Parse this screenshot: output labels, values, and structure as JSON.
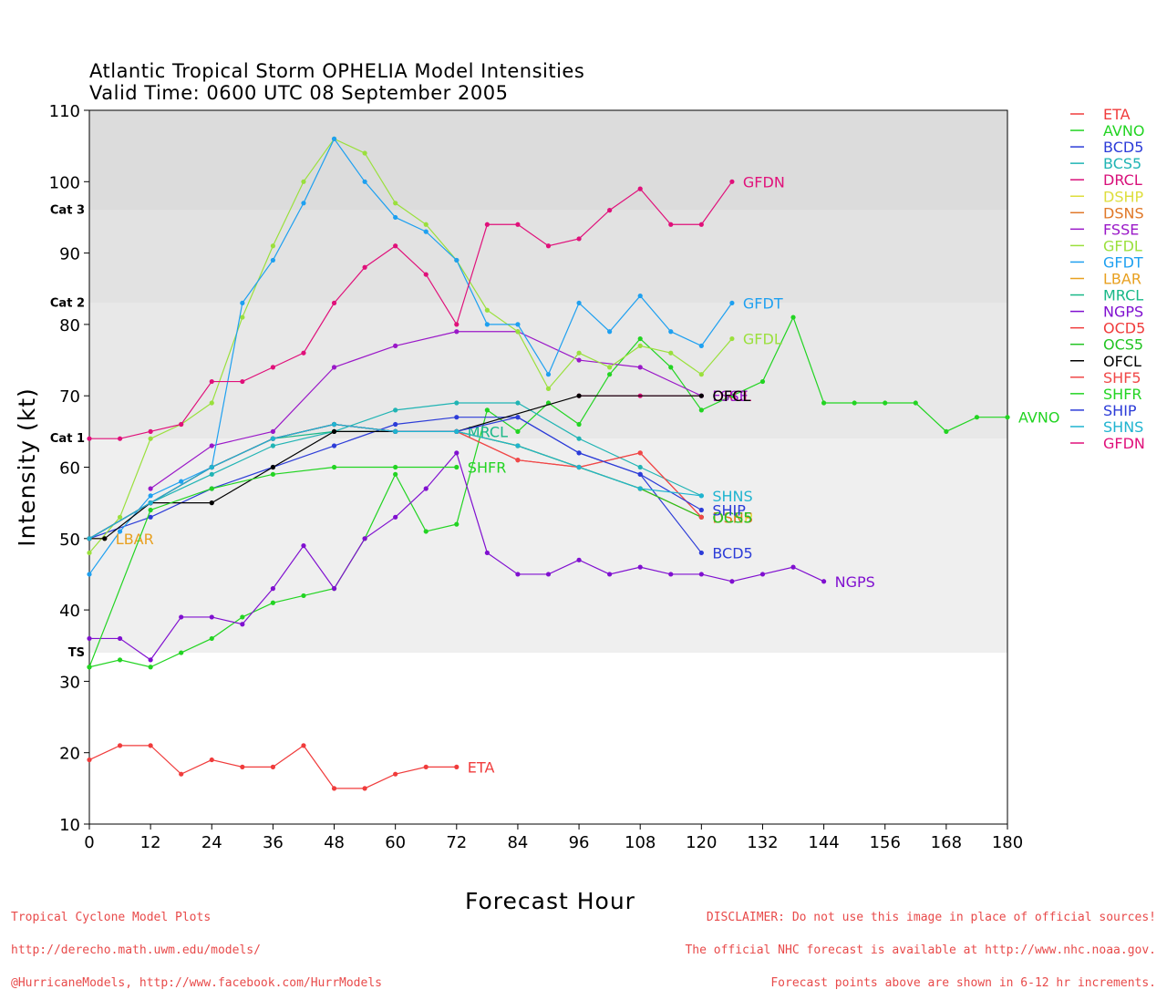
{
  "title": {
    "line1": "Atlantic Tropical Storm OPHELIA Model Intensities",
    "line2": "Valid Time: 0600 UTC 08 September 2005"
  },
  "footer": {
    "left": [
      "Tropical Cyclone Model Plots",
      "http://derecho.math.uwm.edu/models/",
      "@HurricaneModels, http://www.facebook.com/HurrModels"
    ],
    "right": [
      "DISCLAIMER: Do not use this image in place of official sources!",
      "The official NHC forecast is available at http://www.nhc.noaa.gov.",
      "Forecast points above are shown in 6-12 hr increments."
    ],
    "color": "#e84a4a"
  },
  "chart_data": {
    "type": "line",
    "xlabel": "Forecast Hour",
    "ylabel": "Intensity (kt)",
    "xlim": [
      0,
      180
    ],
    "ylim": [
      10,
      110
    ],
    "xticks": [
      0,
      12,
      24,
      36,
      48,
      60,
      72,
      84,
      96,
      108,
      120,
      132,
      144,
      156,
      168,
      180
    ],
    "yticks": [
      10,
      20,
      30,
      40,
      50,
      60,
      70,
      80,
      90,
      100,
      110
    ],
    "legend_position": "right",
    "bands": [
      {
        "label": "TS",
        "from": 34,
        "to": 64,
        "color": "#efefef"
      },
      {
        "label": "Cat 1",
        "from": 64,
        "to": 83,
        "color": "#e8e8e8"
      },
      {
        "label": "Cat 2",
        "from": 83,
        "to": 96,
        "color": "#e2e2e2"
      },
      {
        "label": "Cat 3",
        "from": 96,
        "to": 110,
        "color": "#dcdcdc"
      }
    ],
    "series": [
      {
        "name": "ETA",
        "color": "#f03c3c",
        "label": "ETA",
        "x": [
          0,
          6,
          12,
          18,
          24,
          30,
          36,
          42,
          48,
          54,
          60,
          66,
          72
        ],
        "y": [
          19,
          21,
          21,
          17,
          19,
          18,
          18,
          21,
          15,
          15,
          17,
          18,
          18
        ]
      },
      {
        "name": "AVNO",
        "color": "#22d422",
        "label": "AVNO",
        "x": [
          0,
          6,
          12,
          18,
          24,
          30,
          36,
          42,
          48,
          54,
          60,
          66,
          72,
          78,
          84,
          90,
          96,
          102,
          108,
          114,
          120,
          126,
          132,
          138,
          144,
          150,
          156,
          162,
          168,
          174,
          180
        ],
        "y": [
          32,
          33,
          32,
          34,
          36,
          39,
          41,
          42,
          43,
          50,
          59,
          51,
          52,
          68,
          65,
          69,
          66,
          73,
          78,
          74,
          68,
          70,
          72,
          81,
          69,
          69,
          69,
          69,
          65,
          67,
          67
        ]
      },
      {
        "name": "BCD5",
        "color": "#2c3cd8",
        "label": "BCD5",
        "x": [
          0,
          12,
          24,
          36,
          48,
          60,
          72,
          84,
          96,
          108,
          120
        ],
        "y": [
          50,
          53,
          57,
          60,
          63,
          66,
          67,
          67,
          62,
          59,
          48
        ]
      },
      {
        "name": "BCS5",
        "color": "#20b4b4",
        "label": "",
        "x": [
          0,
          12,
          24,
          36,
          48,
          60,
          72,
          84,
          96,
          108,
          120
        ],
        "y": [
          50,
          55,
          59,
          63,
          65,
          68,
          69,
          69,
          64,
          60,
          56
        ]
      },
      {
        "name": "DRCL",
        "color": "#d8107a",
        "label": "DRCL",
        "x": [
          96,
          108,
          120
        ],
        "y": [
          70,
          70,
          70
        ]
      },
      {
        "name": "DSHP",
        "color": "#dede3c",
        "label": "DSHP",
        "x": [
          0,
          12,
          24,
          36,
          48,
          60,
          72,
          84,
          96,
          108,
          120
        ],
        "y": [
          50,
          55,
          60,
          64,
          66,
          65,
          65,
          63,
          60,
          57,
          53
        ]
      },
      {
        "name": "DSNS",
        "color": "#e07828",
        "label": "DSNS",
        "x": [
          0,
          12,
          24,
          36,
          48,
          60,
          72,
          84,
          96,
          108,
          120
        ],
        "y": [
          50,
          55,
          60,
          64,
          66,
          65,
          65,
          63,
          60,
          57,
          53
        ]
      },
      {
        "name": "FSSE",
        "color": "#9a18c8",
        "label": "FSSE",
        "x": [
          12,
          24,
          36,
          48,
          60,
          72,
          84,
          96,
          108,
          120
        ],
        "y": [
          57,
          63,
          65,
          74,
          77,
          79,
          79,
          75,
          74,
          70
        ]
      },
      {
        "name": "GFDL",
        "color": "#9ae03c",
        "label": "GFDL",
        "x": [
          0,
          6,
          12,
          18,
          24,
          30,
          36,
          42,
          48,
          54,
          60,
          66,
          72,
          78,
          84,
          90,
          96,
          102,
          108,
          114,
          120,
          126
        ],
        "y": [
          48,
          53,
          64,
          66,
          69,
          81,
          91,
          100,
          106,
          104,
          97,
          94,
          89,
          82,
          79,
          71,
          76,
          74,
          77,
          76,
          73,
          78
        ]
      },
      {
        "name": "GFDT",
        "color": "#1ea0f0",
        "label": "GFDT",
        "x": [
          0,
          6,
          12,
          18,
          24,
          30,
          36,
          42,
          48,
          54,
          60,
          66,
          72,
          78,
          84,
          90,
          96,
          102,
          108,
          114,
          120,
          126
        ],
        "y": [
          45,
          51,
          56,
          58,
          60,
          83,
          89,
          97,
          106,
          100,
          95,
          93,
          89,
          80,
          80,
          73,
          83,
          79,
          84,
          79,
          77,
          83
        ]
      },
      {
        "name": "LBAR",
        "color": "#e8a020",
        "label": "LBAR",
        "x": [
          0,
          3
        ],
        "y": [
          50,
          50
        ]
      },
      {
        "name": "MRCL",
        "color": "#18b888",
        "label": "MRCL",
        "x": [
          0,
          12,
          24,
          36,
          48,
          60,
          72
        ],
        "y": [
          50,
          55,
          60,
          64,
          65,
          65,
          65
        ]
      },
      {
        "name": "NGPS",
        "color": "#8010d0",
        "label": "NGPS",
        "x": [
          0,
          6,
          12,
          18,
          24,
          30,
          36,
          42,
          48,
          54,
          60,
          66,
          72,
          78,
          84,
          90,
          96,
          102,
          108,
          114,
          120,
          126,
          132,
          138,
          144
        ],
        "y": [
          36,
          36,
          33,
          39,
          39,
          38,
          43,
          49,
          43,
          50,
          53,
          57,
          62,
          48,
          45,
          45,
          47,
          45,
          46,
          45,
          45,
          44,
          45,
          46,
          44
        ]
      },
      {
        "name": "OCD5",
        "color": "#f03c3c",
        "label": "",
        "x": [
          0,
          12,
          24,
          36,
          48,
          60,
          72,
          84,
          96,
          108,
          120
        ],
        "y": [
          50,
          55,
          60,
          64,
          66,
          65,
          65,
          61,
          60,
          62,
          53
        ]
      },
      {
        "name": "OCS5",
        "color": "#22c422",
        "label": "OCS5",
        "x": [
          0,
          12,
          24,
          36,
          48,
          60,
          72,
          84,
          96,
          108,
          120
        ],
        "y": [
          50,
          55,
          60,
          64,
          66,
          65,
          65,
          63,
          60,
          57,
          53
        ]
      },
      {
        "name": "OFCL",
        "color": "#000000",
        "label": "OFCL",
        "x": [
          0,
          3,
          12,
          24,
          36,
          48,
          60,
          72,
          96,
          120
        ],
        "y": [
          50,
          50,
          55,
          55,
          60,
          65,
          65,
          65,
          70,
          70
        ]
      },
      {
        "name": "SHF5",
        "color": "#f04848",
        "label": "",
        "x": [
          0,
          12,
          24,
          36,
          48,
          60,
          72,
          84,
          96,
          108,
          120
        ],
        "y": [
          50,
          55,
          60,
          64,
          66,
          65,
          65,
          61,
          60,
          62,
          53
        ]
      },
      {
        "name": "SHFR",
        "color": "#22d422",
        "label": "SHFR",
        "x": [
          0,
          12,
          24,
          36,
          48,
          60,
          72
        ],
        "y": [
          32,
          54,
          57,
          59,
          60,
          60,
          60
        ]
      },
      {
        "name": "SHIP",
        "color": "#2c3cd8",
        "label": "SHIP",
        "x": [
          0,
          12,
          24,
          36,
          48,
          60,
          72,
          84,
          96,
          108,
          120
        ],
        "y": [
          50,
          55,
          60,
          64,
          66,
          65,
          65,
          67,
          62,
          59,
          54
        ]
      },
      {
        "name": "SHNS",
        "color": "#20b4d0",
        "label": "SHNS",
        "x": [
          0,
          12,
          24,
          36,
          48,
          60,
          72,
          84,
          96,
          108,
          120
        ],
        "y": [
          50,
          55,
          60,
          64,
          66,
          65,
          65,
          63,
          60,
          57,
          56
        ]
      },
      {
        "name": "GFDN",
        "color": "#e0107a",
        "label": "GFDN",
        "x": [
          0,
          6,
          12,
          18,
          24,
          30,
          36,
          42,
          48,
          54,
          60,
          66,
          72,
          78,
          84,
          90,
          96,
          102,
          108,
          114,
          120,
          126
        ],
        "y": [
          64,
          64,
          65,
          66,
          72,
          72,
          74,
          76,
          83,
          88,
          91,
          87,
          80,
          94,
          94,
          91,
          92,
          96,
          99,
          94,
          94,
          100
        ]
      }
    ]
  }
}
